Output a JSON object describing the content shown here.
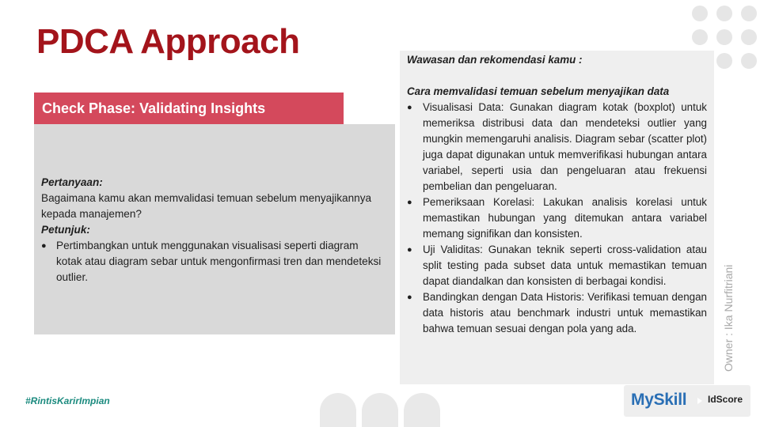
{
  "slide": {
    "title": "PDCA Approach",
    "phase_banner": "Check Phase: Validating Insights",
    "question_box": {
      "question_label": "Pertanyaan:",
      "question_text": "Bagaimana kamu akan memvalidasi temuan sebelum menyajikannya kepada manajemen?",
      "hint_label": "Petunjuk:",
      "hints": [
        "Pertimbangkan untuk menggunakan visualisasi seperti diagram kotak atau diagram sebar untuk mengonfirmasi tren dan mendeteksi outlier."
      ]
    },
    "insight_box": {
      "heading": "Wawasan dan rekomendasi kamu :",
      "subheading": "Cara memvalidasi temuan sebelum menyajikan data",
      "items": [
        "Visualisasi Data: Gunakan diagram kotak (boxplot) untuk memeriksa distribusi data dan mendeteksi outlier yang mungkin memengaruhi analisis. Diagram sebar (scatter plot) juga dapat digunakan untuk memverifikasi hubungan antara variabel, seperti usia dan pengeluaran atau frekuensi pembelian dan pengeluaran.",
        "Pemeriksaan Korelasi: Lakukan analisis korelasi untuk memastikan hubungan yang ditemukan antara variabel memang signifikan dan konsisten.",
        "Uji Validitas: Gunakan teknik seperti cross-validation atau split testing pada subset data untuk memastikan temuan dapat diandalkan dan konsisten di berbagai kondisi.",
        "Bandingkan dengan Data Historis: Verifikasi temuan dengan data historis atau benchmark industri untuk memastikan bahwa temuan sesuai dengan pola yang ada."
      ]
    },
    "owner": "Owner : Ika Nurfitriani",
    "hashtag": "#RintisKarirImpian",
    "logos": {
      "myskill": "MySkill",
      "idscore": "IdScore"
    }
  },
  "colors": {
    "title": "#a3141b",
    "banner": "#d4495c",
    "question_box": "#d9d9d9",
    "insight_box": "#efefef",
    "hashtag": "#1a8a7e",
    "myskill_logo": "#2a6fb5"
  }
}
